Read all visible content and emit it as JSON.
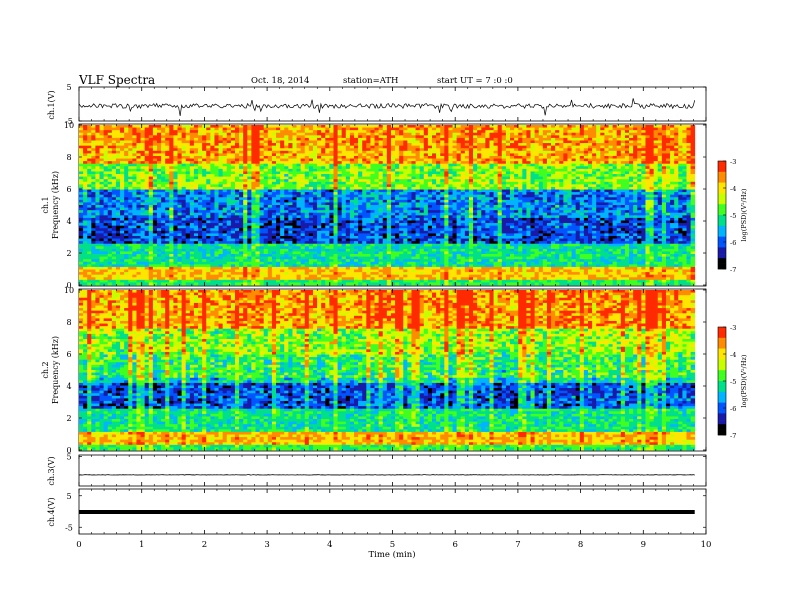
{
  "header": {
    "title": "VLF  Spectra",
    "date": "Oct. 18, 2014",
    "station": "station=ATH",
    "start": "start  UT  =   7  :0  :0"
  },
  "colors": {
    "trace": "#000000",
    "colormap": [
      "#000000",
      "#1a1aa8",
      "#0055ff",
      "#00b4ff",
      "#00e08a",
      "#40ff20",
      "#c8ff00",
      "#ffe600",
      "#ff8c00",
      "#ff2a00"
    ]
  },
  "chart_data": [
    {
      "type": "line",
      "ylabel": "ch.1(V)",
      "yticks": [
        "5",
        "-5"
      ],
      "ylim": [
        -5,
        5
      ],
      "description_level": -0.6,
      "xlim": [
        0,
        10
      ]
    },
    {
      "type": "heatmap",
      "ylabel_lines": [
        "ch.1",
        "Frequency (kHz)"
      ],
      "yticks": [
        "10",
        "8",
        "6",
        "4",
        "2",
        "0"
      ],
      "ylim": [
        0,
        10
      ],
      "xlim": [
        0,
        10
      ],
      "colorbar": {
        "label": "log(PSD)(V²/Hz)",
        "ticks": [
          "-3",
          "-4",
          "-5",
          "-6",
          "-7"
        ],
        "range": [
          -7,
          -3
        ]
      }
    },
    {
      "type": "heatmap",
      "ylabel_lines": [
        "ch.2",
        "Frequency (kHz)"
      ],
      "yticks": [
        "10",
        "8",
        "6",
        "4",
        "2",
        "0"
      ],
      "ylim": [
        0,
        10
      ],
      "xlim": [
        0,
        10
      ],
      "colorbar": {
        "label": "log(PSD)(V²/Hz)",
        "ticks": [
          "-3",
          "-4",
          "-5",
          "-6",
          "-7"
        ],
        "range": [
          -7,
          -3
        ]
      }
    },
    {
      "type": "line",
      "ylabel": "ch.3(V)",
      "yticks": [
        "5"
      ],
      "ylim": [
        -5,
        5
      ],
      "xlim": [
        0,
        10
      ]
    },
    {
      "type": "line",
      "ylabel": "ch.4(V)",
      "yticks": [
        "5",
        "-5"
      ],
      "ylim": [
        -5,
        5
      ],
      "xlim": [
        0,
        10
      ]
    }
  ],
  "xaxis": {
    "label": "Time  (min)",
    "ticks": [
      "0",
      "1",
      "2",
      "3",
      "4",
      "5",
      "6",
      "7",
      "8",
      "9",
      "10"
    ],
    "xlim": [
      0,
      10
    ],
    "data_end": 9.82
  }
}
